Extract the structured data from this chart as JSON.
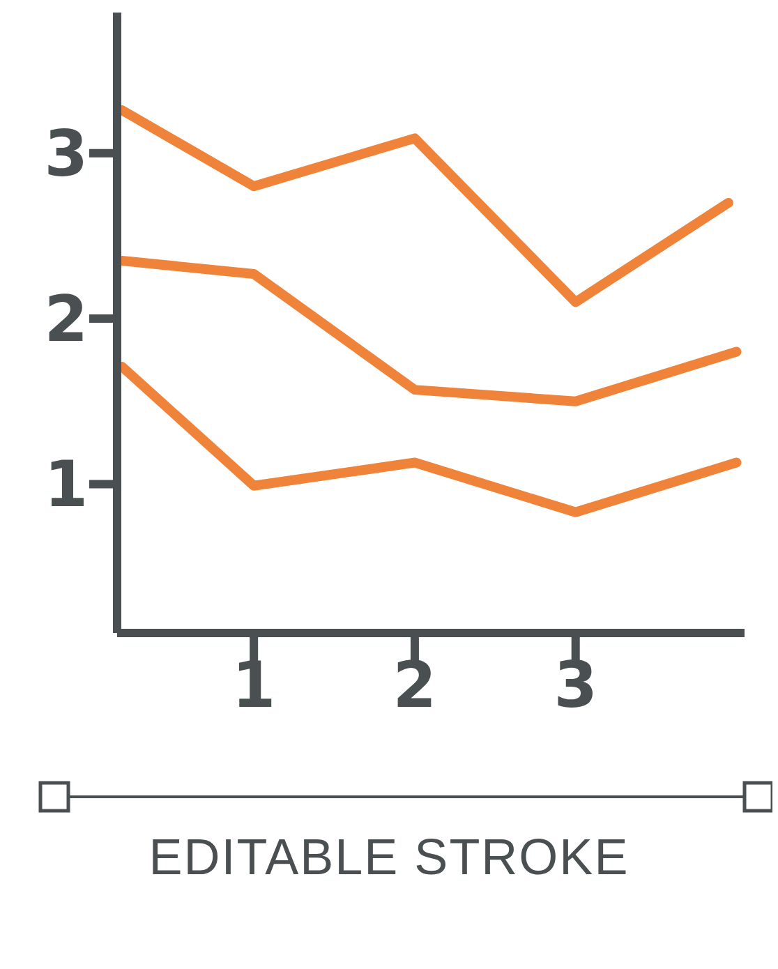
{
  "chart_data": {
    "type": "line",
    "xlim": [
      0.15,
      4.05
    ],
    "ylim": [
      0.1,
      3.85
    ],
    "xticks": [
      1,
      2,
      3
    ],
    "yticks": [
      1,
      2,
      3
    ],
    "marker": "none",
    "line_style": "solid",
    "series": [
      {
        "color": "#ef8339",
        "x": [
          0.18,
          1,
          2,
          3,
          3.95
        ],
        "values": [
          3.26,
          2.8,
          3.09,
          2.1,
          2.7
        ]
      },
      {
        "color": "#ef8339",
        "x": [
          0.18,
          1,
          2,
          3,
          4
        ],
        "values": [
          2.35,
          2.27,
          1.57,
          1.5,
          1.8
        ]
      },
      {
        "color": "#ef8339",
        "x": [
          0.18,
          1,
          2,
          3,
          4
        ],
        "values": [
          1.71,
          0.99,
          1.13,
          0.83,
          1.13
        ]
      }
    ],
    "annotations": [
      "EDITABLE STROKE"
    ]
  }
}
